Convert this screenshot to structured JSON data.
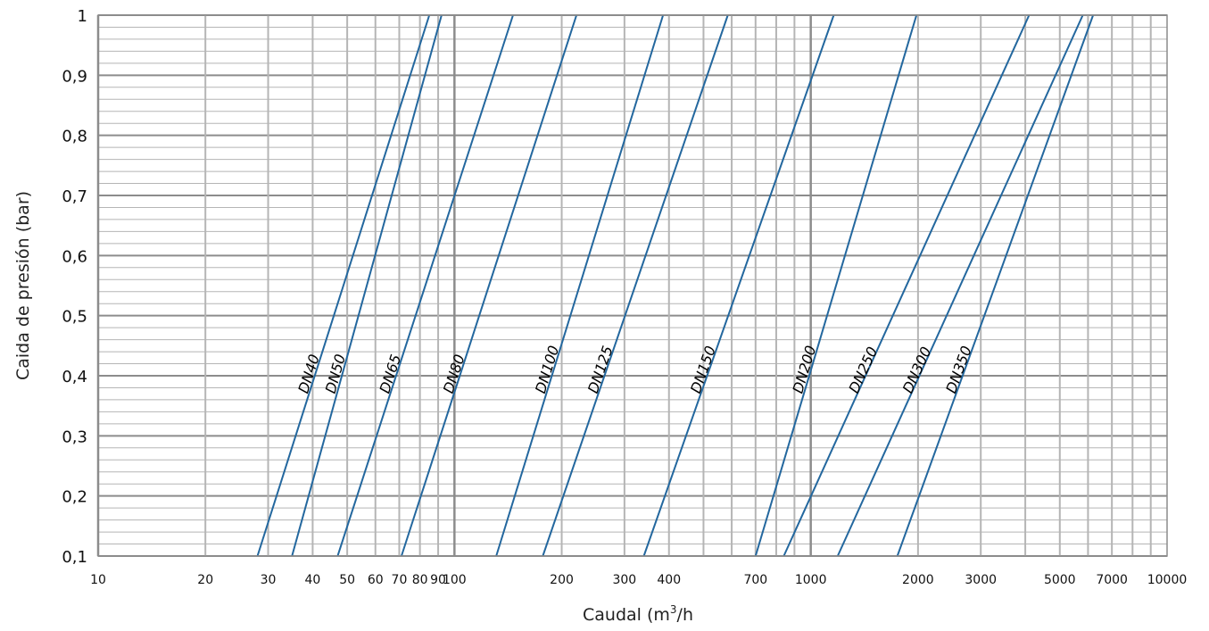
{
  "chart_data": {
    "type": "line",
    "title": "",
    "xlabel": "Caudal (m",
    "xlabel_sup": "3",
    "xlabel_end": "/h",
    "ylabel": "Caida de presión (bar)",
    "x_scale": "log",
    "xlim": [
      10,
      10000
    ],
    "ylim": [
      0.1,
      1
    ],
    "grid": true,
    "x_ticks": [
      "10",
      "20",
      "30",
      "40",
      "50",
      "60",
      "70",
      "80",
      "90",
      "100",
      "200",
      "300",
      "400",
      "700",
      "1000",
      "2000",
      "3000",
      "5000",
      "7000",
      "10000"
    ],
    "y_ticks": [
      "0,1",
      "0,2",
      "0,3",
      "0,4",
      "0,5",
      "0,6",
      "0,7",
      "0,8",
      "0,9",
      "1"
    ],
    "colors": {
      "series": "#23679e",
      "grid": "#b5b5b5",
      "grid_major": "#8c8c8c"
    },
    "series": [
      {
        "name": "DN40",
        "x": [
          28,
          85
        ],
        "y": [
          0.1,
          1
        ]
      },
      {
        "name": "DN50",
        "x": [
          35,
          92
        ],
        "y": [
          0.1,
          1
        ]
      },
      {
        "name": "DN65",
        "x": [
          47,
          146
        ],
        "y": [
          0.1,
          1
        ]
      },
      {
        "name": "DN80",
        "x": [
          71,
          220
        ],
        "y": [
          0.1,
          1
        ]
      },
      {
        "name": "DN100",
        "x": [
          131,
          385
        ],
        "y": [
          0.1,
          1
        ]
      },
      {
        "name": "DN125",
        "x": [
          177,
          585
        ],
        "y": [
          0.1,
          1
        ]
      },
      {
        "name": "DN150",
        "x": [
          340,
          1160
        ],
        "y": [
          0.1,
          1
        ]
      },
      {
        "name": "DN200",
        "x": [
          700,
          1980
        ],
        "y": [
          0.1,
          1
        ]
      },
      {
        "name": "DN250",
        "x": [
          840,
          4100
        ],
        "y": [
          0.1,
          1
        ]
      },
      {
        "name": "DN300",
        "x": [
          1190,
          5800
        ],
        "y": [
          0.1,
          1
        ]
      },
      {
        "name": "DN350",
        "x": [
          1750,
          6200
        ],
        "y": [
          0.1,
          1
        ]
      }
    ]
  }
}
